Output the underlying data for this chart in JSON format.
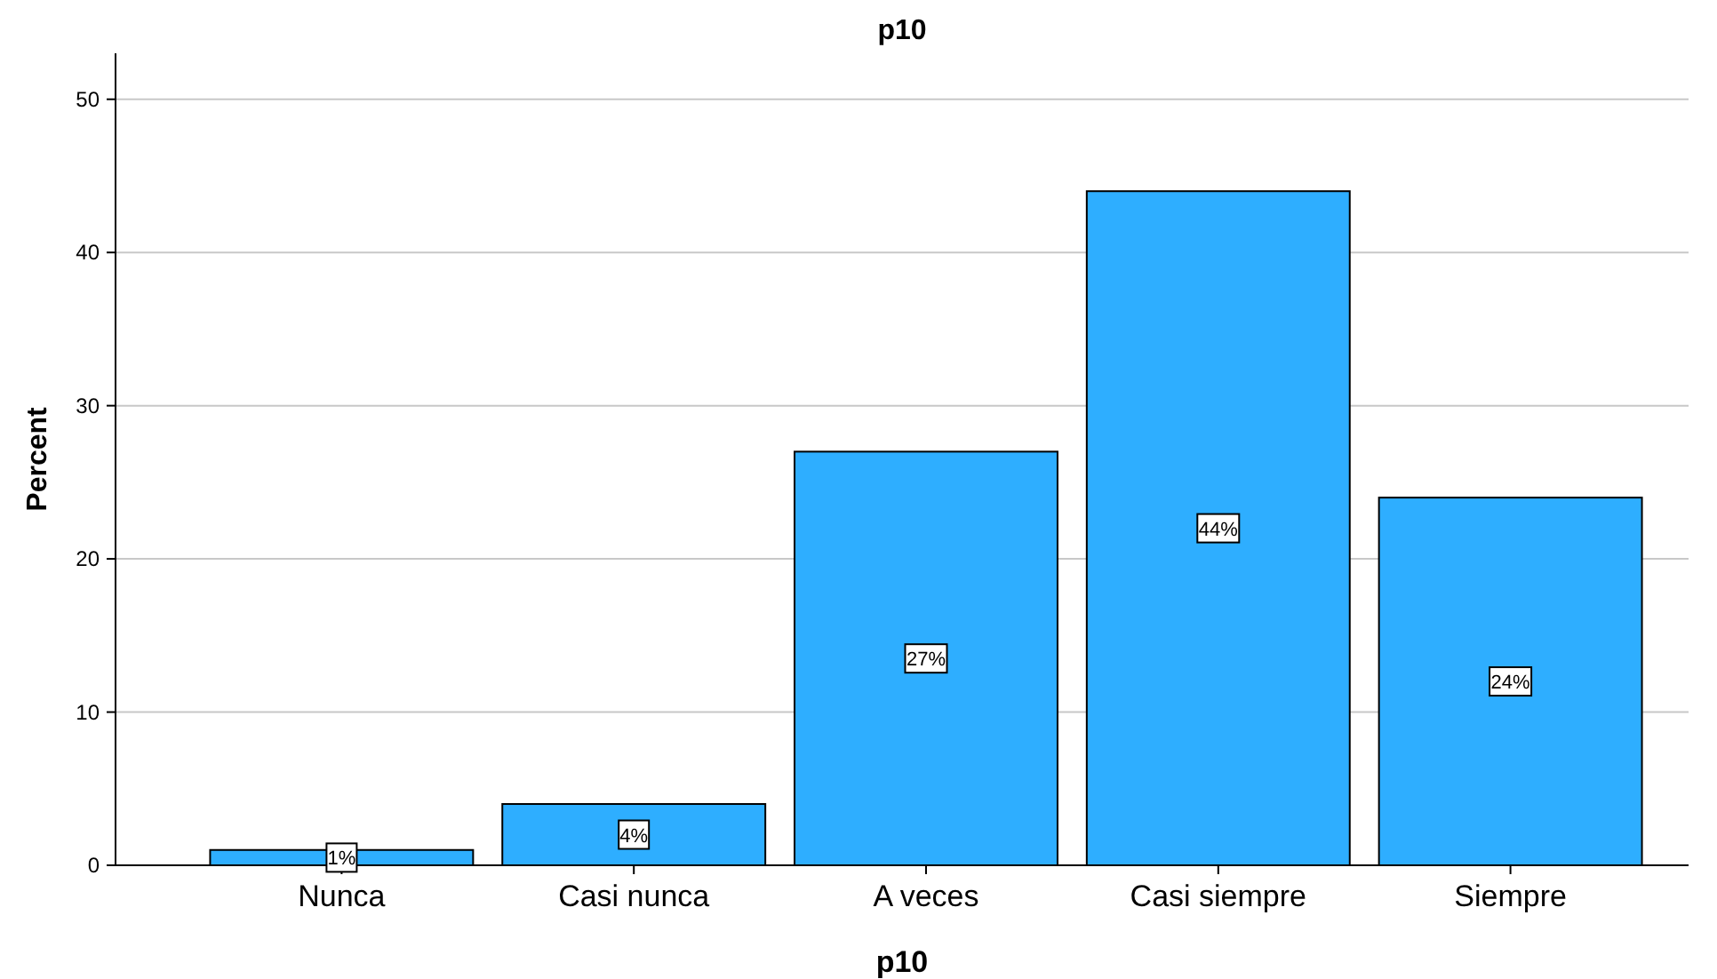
{
  "chart_data": {
    "type": "bar",
    "title": "p10",
    "xlabel": "p10",
    "ylabel": "Percent",
    "categories": [
      "Nunca",
      "Casi nunca",
      "A veces",
      "Casi siempre",
      "Siempre"
    ],
    "values": [
      1,
      4,
      27,
      44,
      24
    ],
    "value_labels": [
      "1%",
      "4%",
      "27%",
      "44%",
      "24%"
    ],
    "color": "#2eaeff",
    "ylim": [
      0,
      53
    ],
    "yticks": [
      0,
      10,
      20,
      30,
      40,
      50
    ],
    "grid": "y"
  }
}
